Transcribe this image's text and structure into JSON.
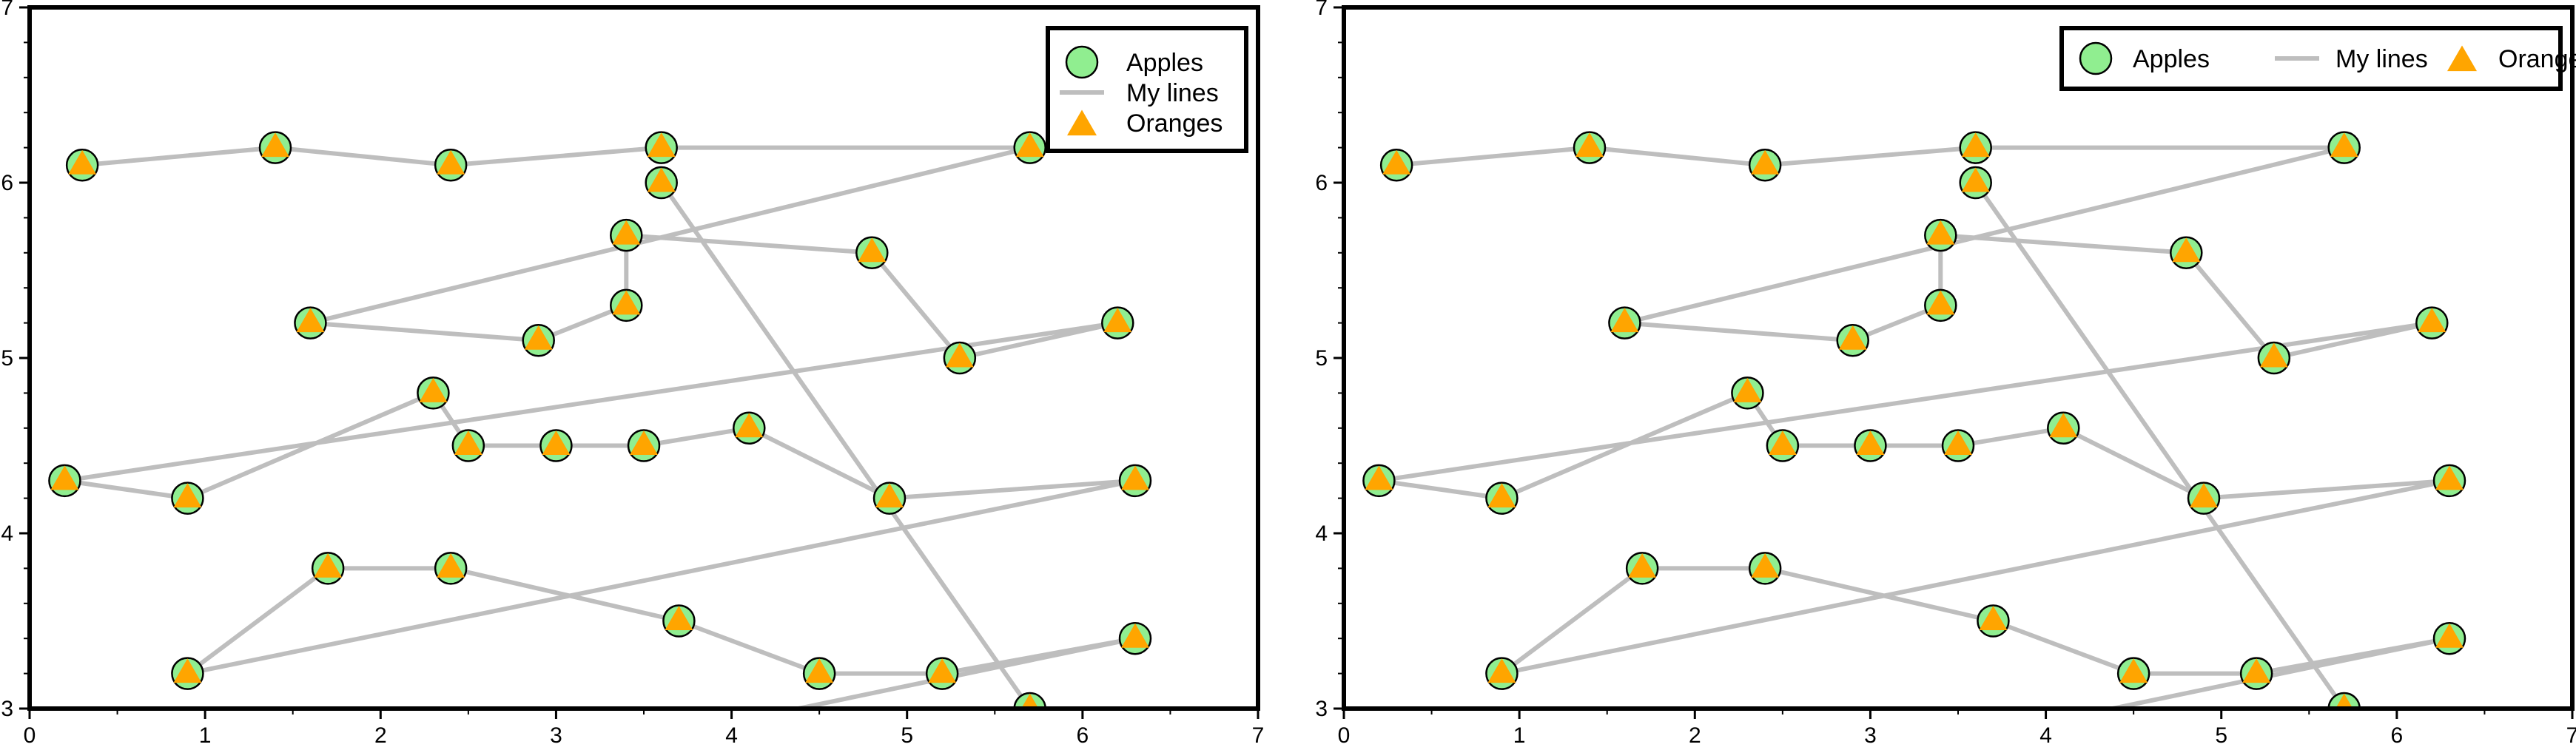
{
  "colors": {
    "apple_fill": "#90ee90",
    "orange_fill": "#ffa500",
    "line_color": "#bebebe",
    "frame": "#000000"
  },
  "chart_data": [
    {
      "type": "scatter",
      "xlim": [
        0,
        7
      ],
      "ylim": [
        3,
        7
      ],
      "x_ticks": [
        "0",
        "1",
        "2",
        "3",
        "4",
        "5",
        "6",
        "7"
      ],
      "y_ticks": [
        "3",
        "4",
        "5",
        "6",
        "7"
      ],
      "grid": false,
      "legend": {
        "placement": "top-right",
        "layout": "vertical",
        "entries": [
          "Apples",
          "My lines",
          "Oranges"
        ]
      },
      "series": [
        {
          "name": "Apples",
          "marker": "circle",
          "color": "#90ee90"
        },
        {
          "name": "My lines",
          "marker": "line",
          "color": "#bebebe"
        },
        {
          "name": "Oranges",
          "marker": "triangle",
          "color": "#ffa500"
        }
      ],
      "points": [
        [
          0.3,
          6.1
        ],
        [
          1.4,
          6.2
        ],
        [
          2.4,
          6.1
        ],
        [
          3.6,
          6.2
        ],
        [
          5.7,
          6.2
        ],
        [
          1.6,
          5.2
        ],
        [
          2.9,
          5.1
        ],
        [
          3.4,
          5.3
        ],
        [
          3.4,
          5.7
        ],
        [
          4.8,
          5.6
        ],
        [
          5.3,
          5.0
        ],
        [
          6.2,
          5.2
        ],
        [
          0.2,
          4.3
        ],
        [
          0.9,
          4.2
        ],
        [
          2.3,
          4.8
        ],
        [
          2.5,
          4.5
        ],
        [
          3.0,
          4.5
        ],
        [
          3.5,
          4.5
        ],
        [
          4.1,
          4.6
        ],
        [
          4.9,
          4.2
        ],
        [
          6.3,
          4.3
        ],
        [
          0.9,
          3.2
        ],
        [
          1.7,
          3.8
        ],
        [
          2.4,
          3.8
        ],
        [
          3.7,
          3.5
        ],
        [
          4.5,
          3.2
        ],
        [
          5.2,
          3.2
        ],
        [
          6.3,
          3.4
        ],
        [
          3.9,
          2.9
        ],
        [
          5.7,
          3.0
        ],
        [
          3.6,
          6.0
        ]
      ]
    },
    {
      "type": "scatter",
      "xlim": [
        0,
        7
      ],
      "ylim": [
        3,
        7
      ],
      "x_ticks": [
        "0",
        "1",
        "2",
        "3",
        "4",
        "5",
        "6",
        "7"
      ],
      "y_ticks": [
        "3",
        "4",
        "5",
        "6",
        "7"
      ],
      "grid": false,
      "legend": {
        "placement": "top-right",
        "layout": "horizontal",
        "entries": [
          "Apples",
          "My lines",
          "Oranges"
        ]
      },
      "series": [
        {
          "name": "Apples",
          "marker": "circle",
          "color": "#90ee90"
        },
        {
          "name": "My lines",
          "marker": "line",
          "color": "#bebebe"
        },
        {
          "name": "Oranges",
          "marker": "triangle",
          "color": "#ffa500"
        }
      ],
      "points": [
        [
          0.3,
          6.1
        ],
        [
          1.4,
          6.2
        ],
        [
          2.4,
          6.1
        ],
        [
          3.6,
          6.2
        ],
        [
          5.7,
          6.2
        ],
        [
          1.6,
          5.2
        ],
        [
          2.9,
          5.1
        ],
        [
          3.4,
          5.3
        ],
        [
          3.4,
          5.7
        ],
        [
          4.8,
          5.6
        ],
        [
          5.3,
          5.0
        ],
        [
          6.2,
          5.2
        ],
        [
          0.2,
          4.3
        ],
        [
          0.9,
          4.2
        ],
        [
          2.3,
          4.8
        ],
        [
          2.5,
          4.5
        ],
        [
          3.0,
          4.5
        ],
        [
          3.5,
          4.5
        ],
        [
          4.1,
          4.6
        ],
        [
          4.9,
          4.2
        ],
        [
          6.3,
          4.3
        ],
        [
          0.9,
          3.2
        ],
        [
          1.7,
          3.8
        ],
        [
          2.4,
          3.8
        ],
        [
          3.7,
          3.5
        ],
        [
          4.5,
          3.2
        ],
        [
          5.2,
          3.2
        ],
        [
          6.3,
          3.4
        ],
        [
          3.9,
          2.9
        ],
        [
          5.7,
          3.0
        ],
        [
          3.6,
          6.0
        ]
      ]
    }
  ]
}
